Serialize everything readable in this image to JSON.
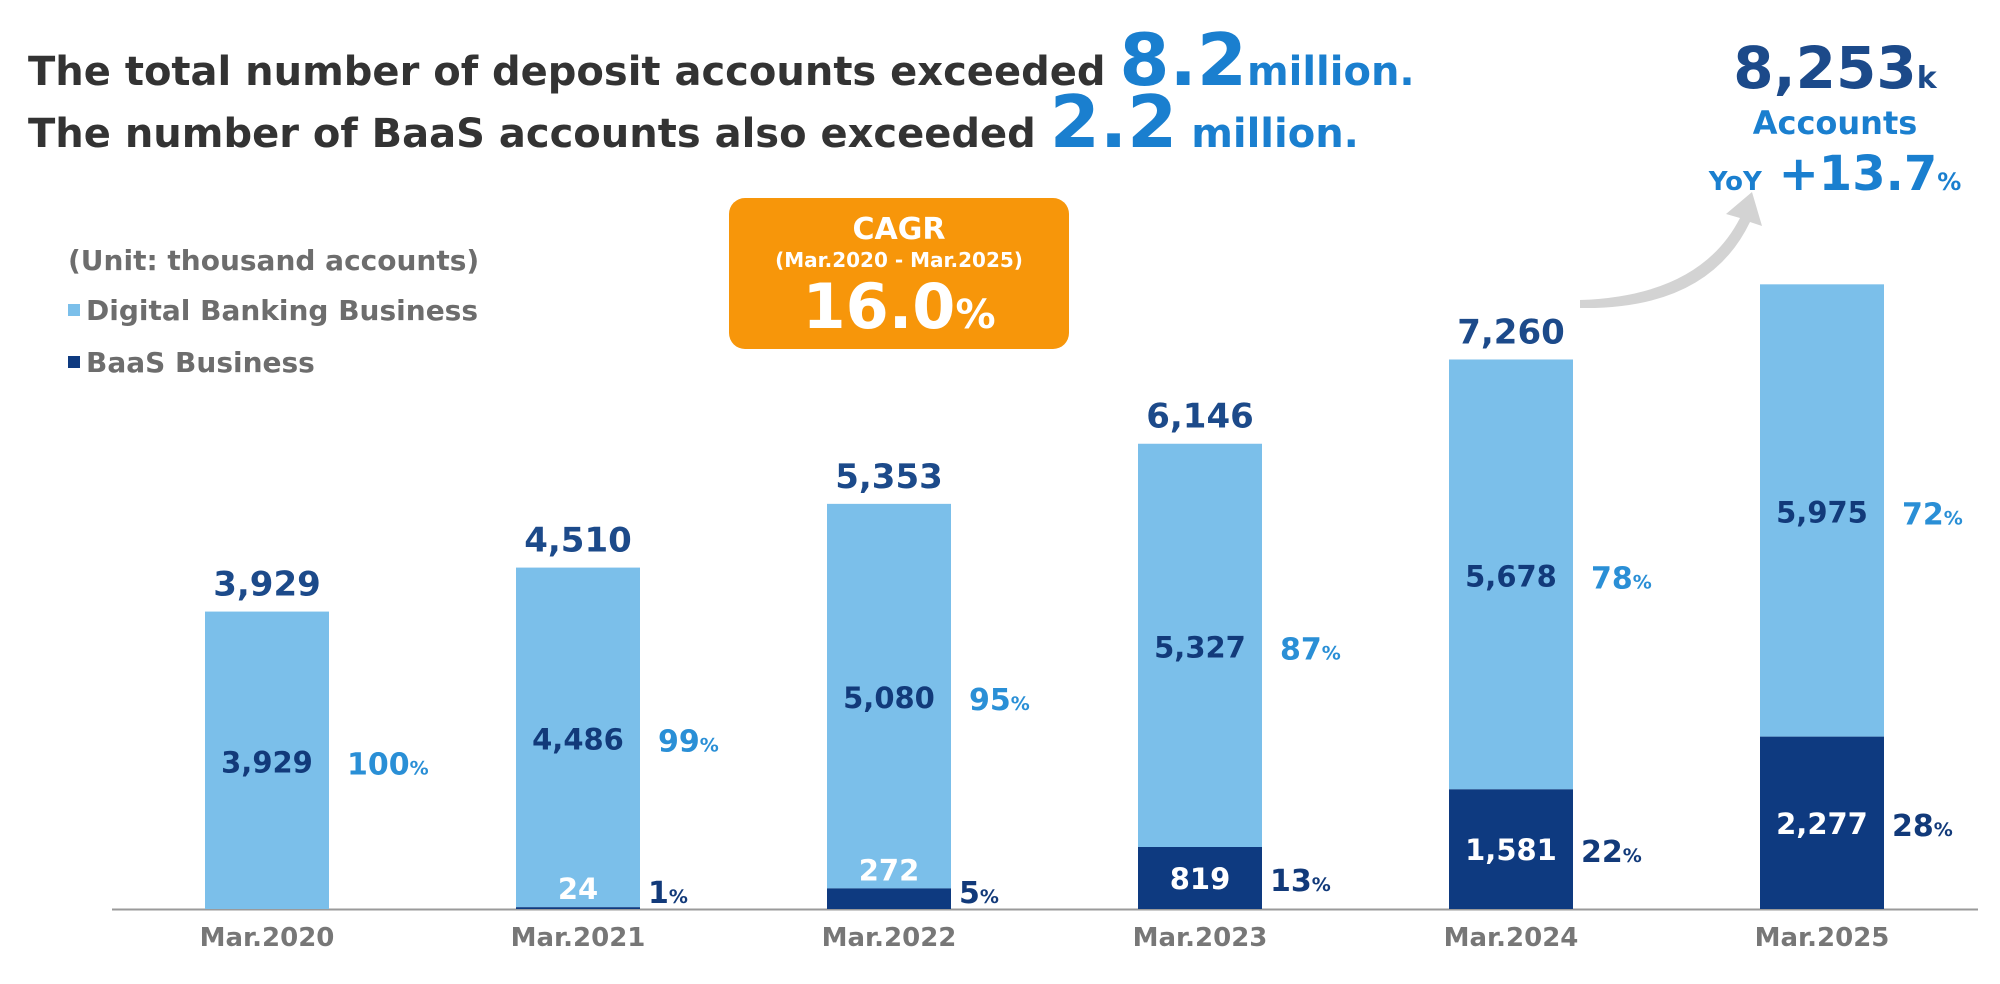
{
  "headline": {
    "line1_prefix": "The total number of deposit accounts exceeded ",
    "line1_value": "8.2",
    "line1_suffix": "million.",
    "line2_prefix": "The number of BaaS accounts also exceeded ",
    "line2_value": "2.2",
    "line2_suffix": " million."
  },
  "unit_note": "(Unit: thousand accounts)",
  "legend": {
    "digital": "Digital Banking Business",
    "baas": "BaaS Business"
  },
  "cagr": {
    "title": "CAGR",
    "period": "(Mar.2020 - Mar.2025)",
    "value": "16.0",
    "pct": "%"
  },
  "callout": {
    "total": "8,253",
    "total_unit": "k",
    "label": "Accounts",
    "yoy_label": "YoY",
    "yoy_value": "+13.7",
    "yoy_pct": "%"
  },
  "colors": {
    "digital": "#7bbfea",
    "baas": "#0e3a80",
    "orange": "#f7960a",
    "arrow": "#d3d3d3",
    "total_text": "#1c4a8a",
    "pct_light": "#2a8fd6",
    "axis": "#9a9a9a"
  },
  "chart_data": {
    "type": "bar",
    "stacked": true,
    "categories": [
      "Mar.2020",
      "Mar.2021",
      "Mar.2022",
      "Mar.2023",
      "Mar.2024",
      "Mar.2025"
    ],
    "series": [
      {
        "name": "BaaS Business",
        "values": [
          0,
          24,
          272,
          819,
          1581,
          2277
        ],
        "share_labels": [
          null,
          "1",
          "5",
          "13",
          "22",
          "28"
        ]
      },
      {
        "name": "Digital Banking Business",
        "values": [
          3929,
          4486,
          5080,
          5327,
          5678,
          5975
        ],
        "share_labels": [
          "100",
          "99",
          "95",
          "87",
          "78",
          "72"
        ]
      }
    ],
    "totals": [
      3929,
      4510,
      5353,
      6146,
      7260,
      8253
    ],
    "total_labels": [
      "3,929",
      "4,510",
      "5,353",
      "6,146",
      "7,260",
      ""
    ],
    "value_labels": {
      "baas": [
        null,
        "24",
        "272",
        "819",
        "1,581",
        "2,277"
      ],
      "digital": [
        "3,929",
        "4,486",
        "5,080",
        "5,327",
        "5,678",
        "5,975"
      ]
    },
    "pct_suffix": "%",
    "ylim": [
      0,
      9000
    ],
    "grid": false,
    "legend_position": "top-left"
  }
}
